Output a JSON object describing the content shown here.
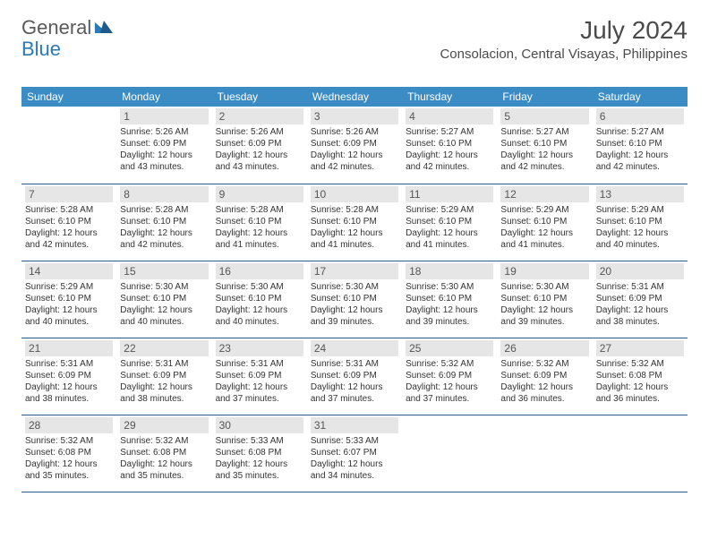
{
  "brand": {
    "name_part1": "General",
    "name_part2": "Blue",
    "text_color": "#5a5a5a",
    "accent_color": "#2a7ab8"
  },
  "header": {
    "month_title": "July 2024",
    "location": "Consolacion, Central Visayas, Philippines",
    "title_color": "#4a4a4a",
    "title_fontsize": 28,
    "location_fontsize": 15
  },
  "calendar": {
    "header_bg": "#3b8bc4",
    "header_text_color": "#ffffff",
    "day_bg": "#e6e6e6",
    "day_text_color": "#555555",
    "border_color": "#2a5a8a",
    "cell_text_color": "#333333",
    "day_names": [
      "Sunday",
      "Monday",
      "Tuesday",
      "Wednesday",
      "Thursday",
      "Friday",
      "Saturday"
    ],
    "weeks": [
      [
        null,
        {
          "day": "1",
          "sunrise": "Sunrise: 5:26 AM",
          "sunset": "Sunset: 6:09 PM",
          "daylight1": "Daylight: 12 hours",
          "daylight2": "and 43 minutes."
        },
        {
          "day": "2",
          "sunrise": "Sunrise: 5:26 AM",
          "sunset": "Sunset: 6:09 PM",
          "daylight1": "Daylight: 12 hours",
          "daylight2": "and 43 minutes."
        },
        {
          "day": "3",
          "sunrise": "Sunrise: 5:26 AM",
          "sunset": "Sunset: 6:09 PM",
          "daylight1": "Daylight: 12 hours",
          "daylight2": "and 42 minutes."
        },
        {
          "day": "4",
          "sunrise": "Sunrise: 5:27 AM",
          "sunset": "Sunset: 6:10 PM",
          "daylight1": "Daylight: 12 hours",
          "daylight2": "and 42 minutes."
        },
        {
          "day": "5",
          "sunrise": "Sunrise: 5:27 AM",
          "sunset": "Sunset: 6:10 PM",
          "daylight1": "Daylight: 12 hours",
          "daylight2": "and 42 minutes."
        },
        {
          "day": "6",
          "sunrise": "Sunrise: 5:27 AM",
          "sunset": "Sunset: 6:10 PM",
          "daylight1": "Daylight: 12 hours",
          "daylight2": "and 42 minutes."
        }
      ],
      [
        {
          "day": "7",
          "sunrise": "Sunrise: 5:28 AM",
          "sunset": "Sunset: 6:10 PM",
          "daylight1": "Daylight: 12 hours",
          "daylight2": "and 42 minutes."
        },
        {
          "day": "8",
          "sunrise": "Sunrise: 5:28 AM",
          "sunset": "Sunset: 6:10 PM",
          "daylight1": "Daylight: 12 hours",
          "daylight2": "and 42 minutes."
        },
        {
          "day": "9",
          "sunrise": "Sunrise: 5:28 AM",
          "sunset": "Sunset: 6:10 PM",
          "daylight1": "Daylight: 12 hours",
          "daylight2": "and 41 minutes."
        },
        {
          "day": "10",
          "sunrise": "Sunrise: 5:28 AM",
          "sunset": "Sunset: 6:10 PM",
          "daylight1": "Daylight: 12 hours",
          "daylight2": "and 41 minutes."
        },
        {
          "day": "11",
          "sunrise": "Sunrise: 5:29 AM",
          "sunset": "Sunset: 6:10 PM",
          "daylight1": "Daylight: 12 hours",
          "daylight2": "and 41 minutes."
        },
        {
          "day": "12",
          "sunrise": "Sunrise: 5:29 AM",
          "sunset": "Sunset: 6:10 PM",
          "daylight1": "Daylight: 12 hours",
          "daylight2": "and 41 minutes."
        },
        {
          "day": "13",
          "sunrise": "Sunrise: 5:29 AM",
          "sunset": "Sunset: 6:10 PM",
          "daylight1": "Daylight: 12 hours",
          "daylight2": "and 40 minutes."
        }
      ],
      [
        {
          "day": "14",
          "sunrise": "Sunrise: 5:29 AM",
          "sunset": "Sunset: 6:10 PM",
          "daylight1": "Daylight: 12 hours",
          "daylight2": "and 40 minutes."
        },
        {
          "day": "15",
          "sunrise": "Sunrise: 5:30 AM",
          "sunset": "Sunset: 6:10 PM",
          "daylight1": "Daylight: 12 hours",
          "daylight2": "and 40 minutes."
        },
        {
          "day": "16",
          "sunrise": "Sunrise: 5:30 AM",
          "sunset": "Sunset: 6:10 PM",
          "daylight1": "Daylight: 12 hours",
          "daylight2": "and 40 minutes."
        },
        {
          "day": "17",
          "sunrise": "Sunrise: 5:30 AM",
          "sunset": "Sunset: 6:10 PM",
          "daylight1": "Daylight: 12 hours",
          "daylight2": "and 39 minutes."
        },
        {
          "day": "18",
          "sunrise": "Sunrise: 5:30 AM",
          "sunset": "Sunset: 6:10 PM",
          "daylight1": "Daylight: 12 hours",
          "daylight2": "and 39 minutes."
        },
        {
          "day": "19",
          "sunrise": "Sunrise: 5:30 AM",
          "sunset": "Sunset: 6:10 PM",
          "daylight1": "Daylight: 12 hours",
          "daylight2": "and 39 minutes."
        },
        {
          "day": "20",
          "sunrise": "Sunrise: 5:31 AM",
          "sunset": "Sunset: 6:09 PM",
          "daylight1": "Daylight: 12 hours",
          "daylight2": "and 38 minutes."
        }
      ],
      [
        {
          "day": "21",
          "sunrise": "Sunrise: 5:31 AM",
          "sunset": "Sunset: 6:09 PM",
          "daylight1": "Daylight: 12 hours",
          "daylight2": "and 38 minutes."
        },
        {
          "day": "22",
          "sunrise": "Sunrise: 5:31 AM",
          "sunset": "Sunset: 6:09 PM",
          "daylight1": "Daylight: 12 hours",
          "daylight2": "and 38 minutes."
        },
        {
          "day": "23",
          "sunrise": "Sunrise: 5:31 AM",
          "sunset": "Sunset: 6:09 PM",
          "daylight1": "Daylight: 12 hours",
          "daylight2": "and 37 minutes."
        },
        {
          "day": "24",
          "sunrise": "Sunrise: 5:31 AM",
          "sunset": "Sunset: 6:09 PM",
          "daylight1": "Daylight: 12 hours",
          "daylight2": "and 37 minutes."
        },
        {
          "day": "25",
          "sunrise": "Sunrise: 5:32 AM",
          "sunset": "Sunset: 6:09 PM",
          "daylight1": "Daylight: 12 hours",
          "daylight2": "and 37 minutes."
        },
        {
          "day": "26",
          "sunrise": "Sunrise: 5:32 AM",
          "sunset": "Sunset: 6:09 PM",
          "daylight1": "Daylight: 12 hours",
          "daylight2": "and 36 minutes."
        },
        {
          "day": "27",
          "sunrise": "Sunrise: 5:32 AM",
          "sunset": "Sunset: 6:08 PM",
          "daylight1": "Daylight: 12 hours",
          "daylight2": "and 36 minutes."
        }
      ],
      [
        {
          "day": "28",
          "sunrise": "Sunrise: 5:32 AM",
          "sunset": "Sunset: 6:08 PM",
          "daylight1": "Daylight: 12 hours",
          "daylight2": "and 35 minutes."
        },
        {
          "day": "29",
          "sunrise": "Sunrise: 5:32 AM",
          "sunset": "Sunset: 6:08 PM",
          "daylight1": "Daylight: 12 hours",
          "daylight2": "and 35 minutes."
        },
        {
          "day": "30",
          "sunrise": "Sunrise: 5:33 AM",
          "sunset": "Sunset: 6:08 PM",
          "daylight1": "Daylight: 12 hours",
          "daylight2": "and 35 minutes."
        },
        {
          "day": "31",
          "sunrise": "Sunrise: 5:33 AM",
          "sunset": "Sunset: 6:07 PM",
          "daylight1": "Daylight: 12 hours",
          "daylight2": "and 34 minutes."
        },
        null,
        null,
        null
      ]
    ]
  }
}
